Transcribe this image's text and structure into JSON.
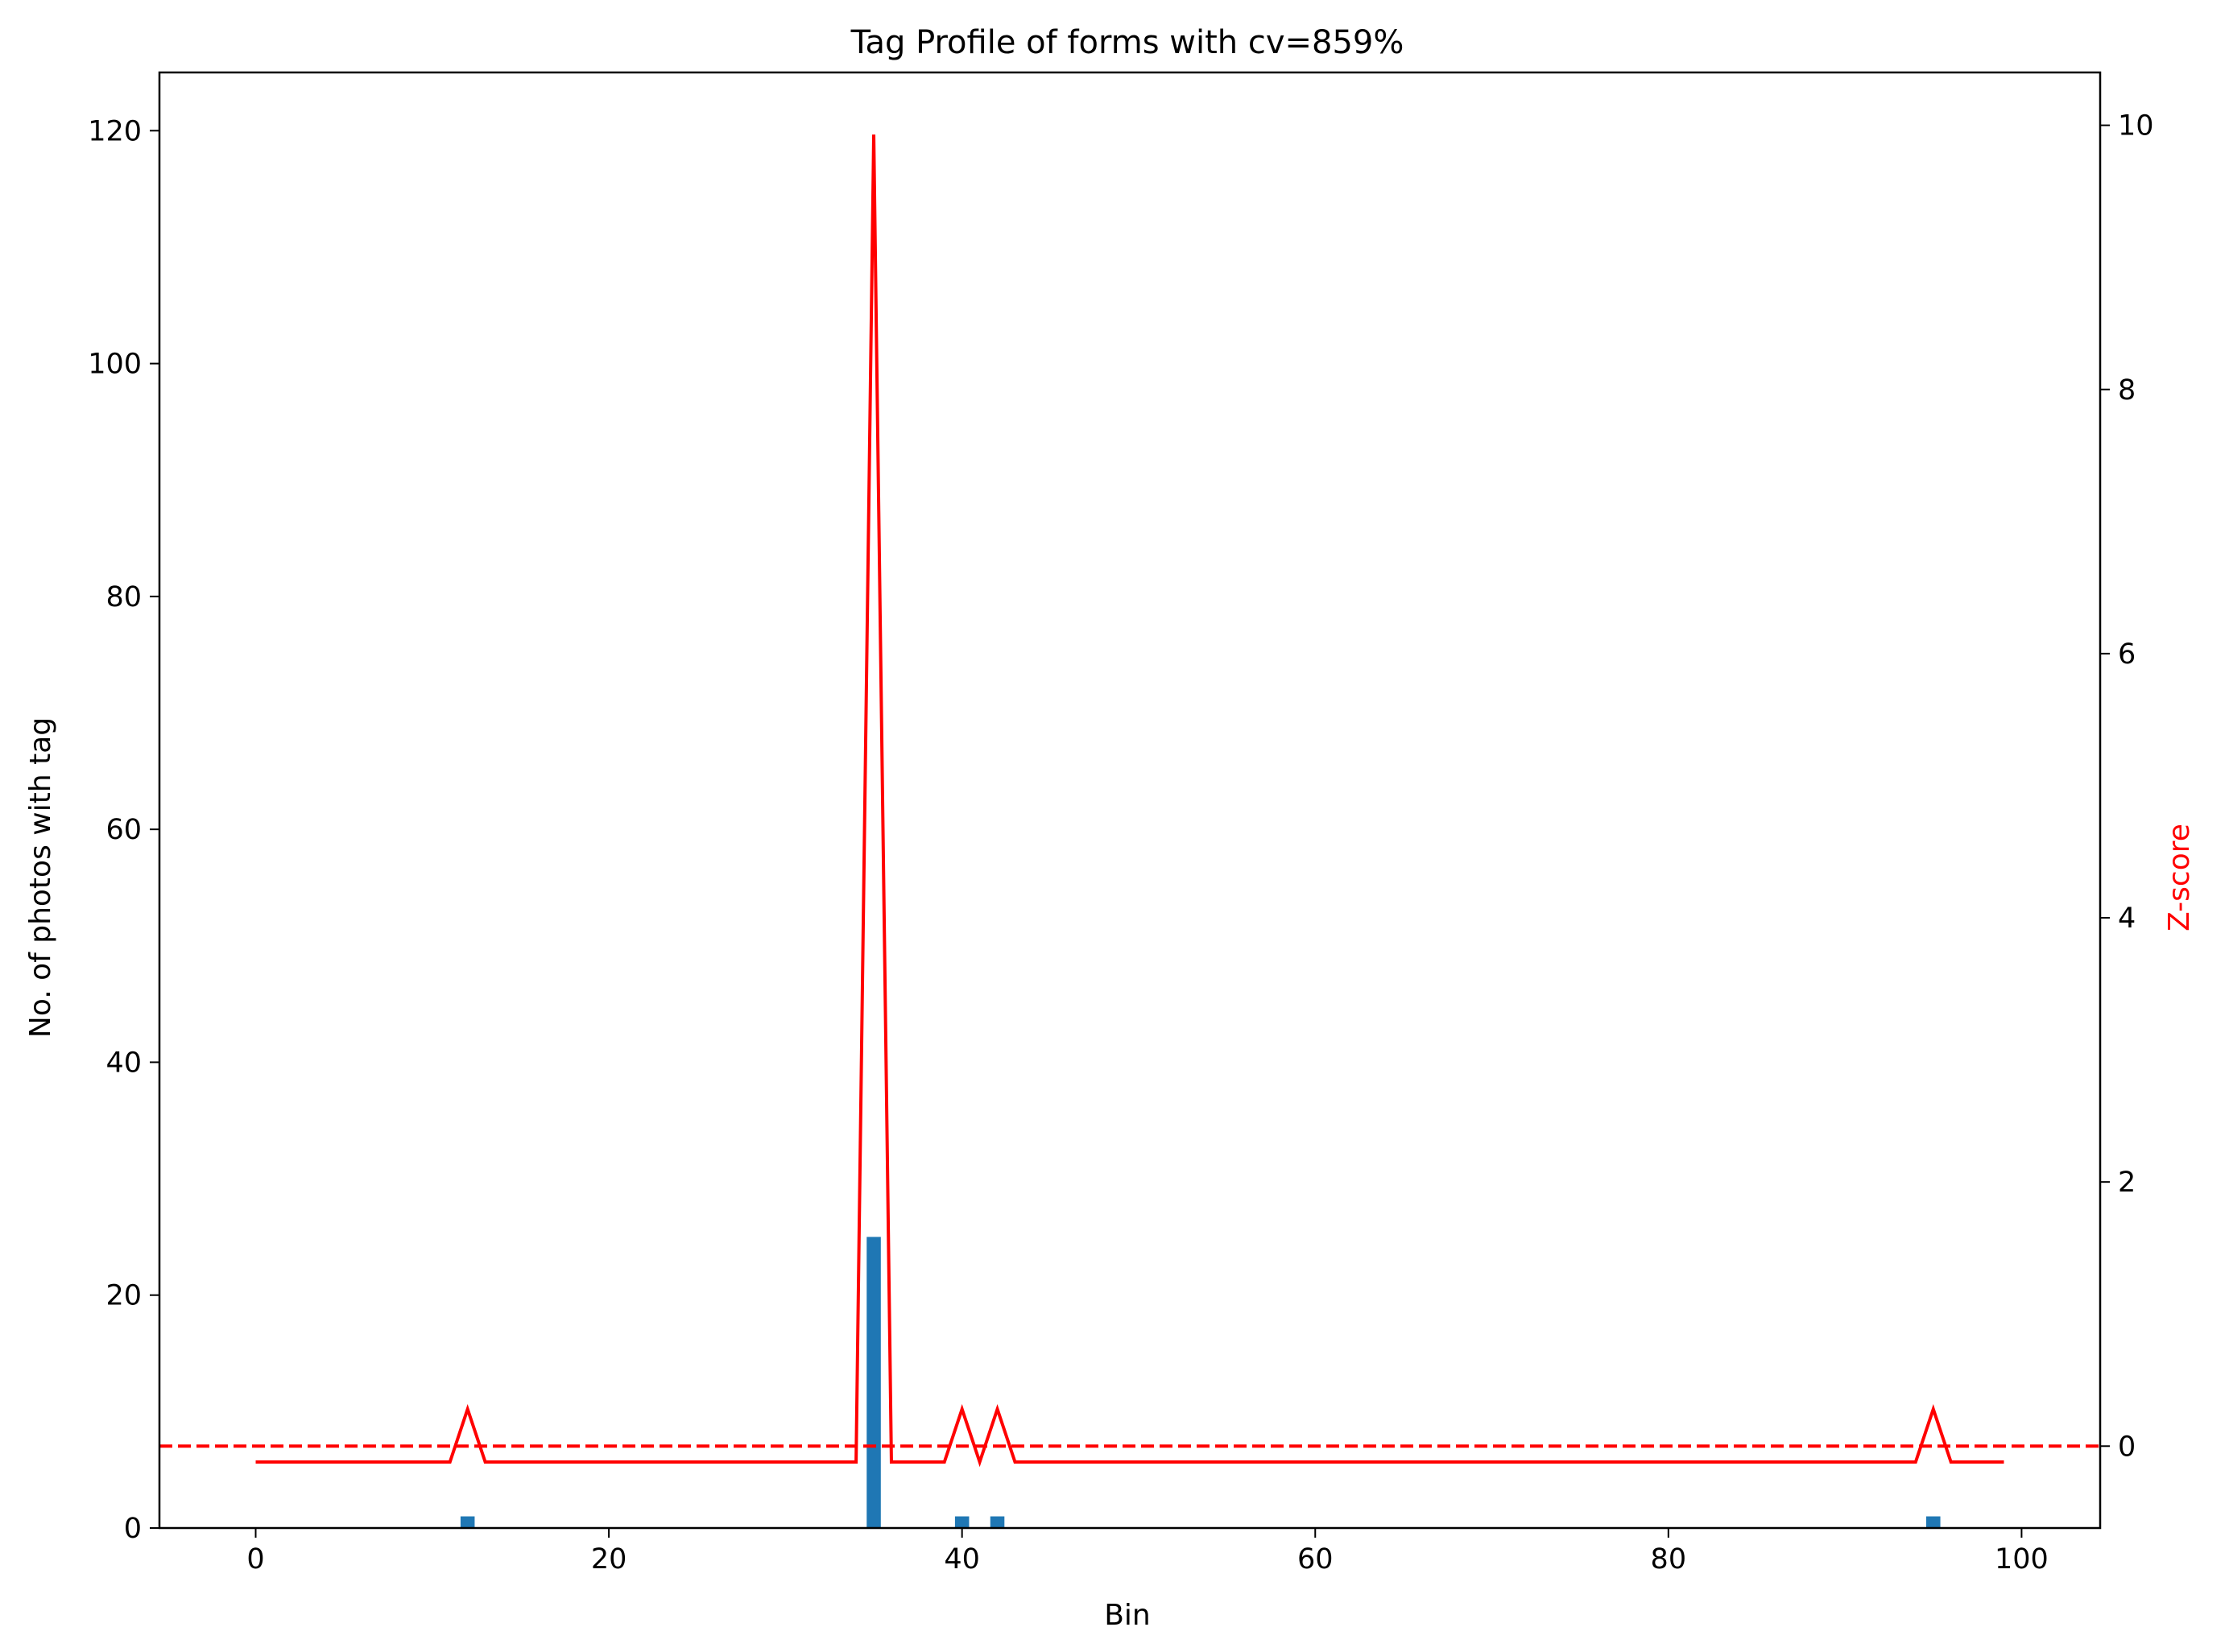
{
  "chart_data": {
    "type": "bar",
    "title": "Tag Profile of forms with cv=859%",
    "xlabel": "Bin",
    "ylabel": "No. of photos with tag",
    "y2label": "Z-score",
    "xlim": [
      -5.45,
      104.45
    ],
    "ylim": [
      0,
      125
    ],
    "y2lim": [
      -0.62,
      10.4
    ],
    "xticks": [
      0,
      20,
      40,
      60,
      80,
      100
    ],
    "yticks": [
      0,
      20,
      40,
      60,
      80,
      100,
      120
    ],
    "y2ticks": [
      0,
      2,
      4,
      6,
      8,
      10
    ],
    "grid": false,
    "series": [
      {
        "kind": "bar",
        "axis": "left",
        "color": "#1f77b4",
        "x": [
          12,
          35,
          40,
          42,
          95
        ],
        "values": [
          1,
          25,
          1,
          1,
          1
        ]
      },
      {
        "kind": "line",
        "axis": "right",
        "color": "#ff0000",
        "x": [
          0,
          11,
          12,
          13,
          34,
          35,
          36,
          39,
          40,
          41,
          42,
          43,
          94,
          95,
          96,
          99
        ],
        "values": [
          -0.12,
          -0.12,
          0.28,
          -0.12,
          -0.12,
          9.93,
          -0.12,
          -0.12,
          0.28,
          -0.12,
          0.28,
          -0.12,
          -0.12,
          0.28,
          -0.12,
          -0.12
        ]
      },
      {
        "kind": "hline",
        "axis": "right",
        "style": "dashed",
        "color": "#ff0000",
        "value": 0
      }
    ]
  }
}
